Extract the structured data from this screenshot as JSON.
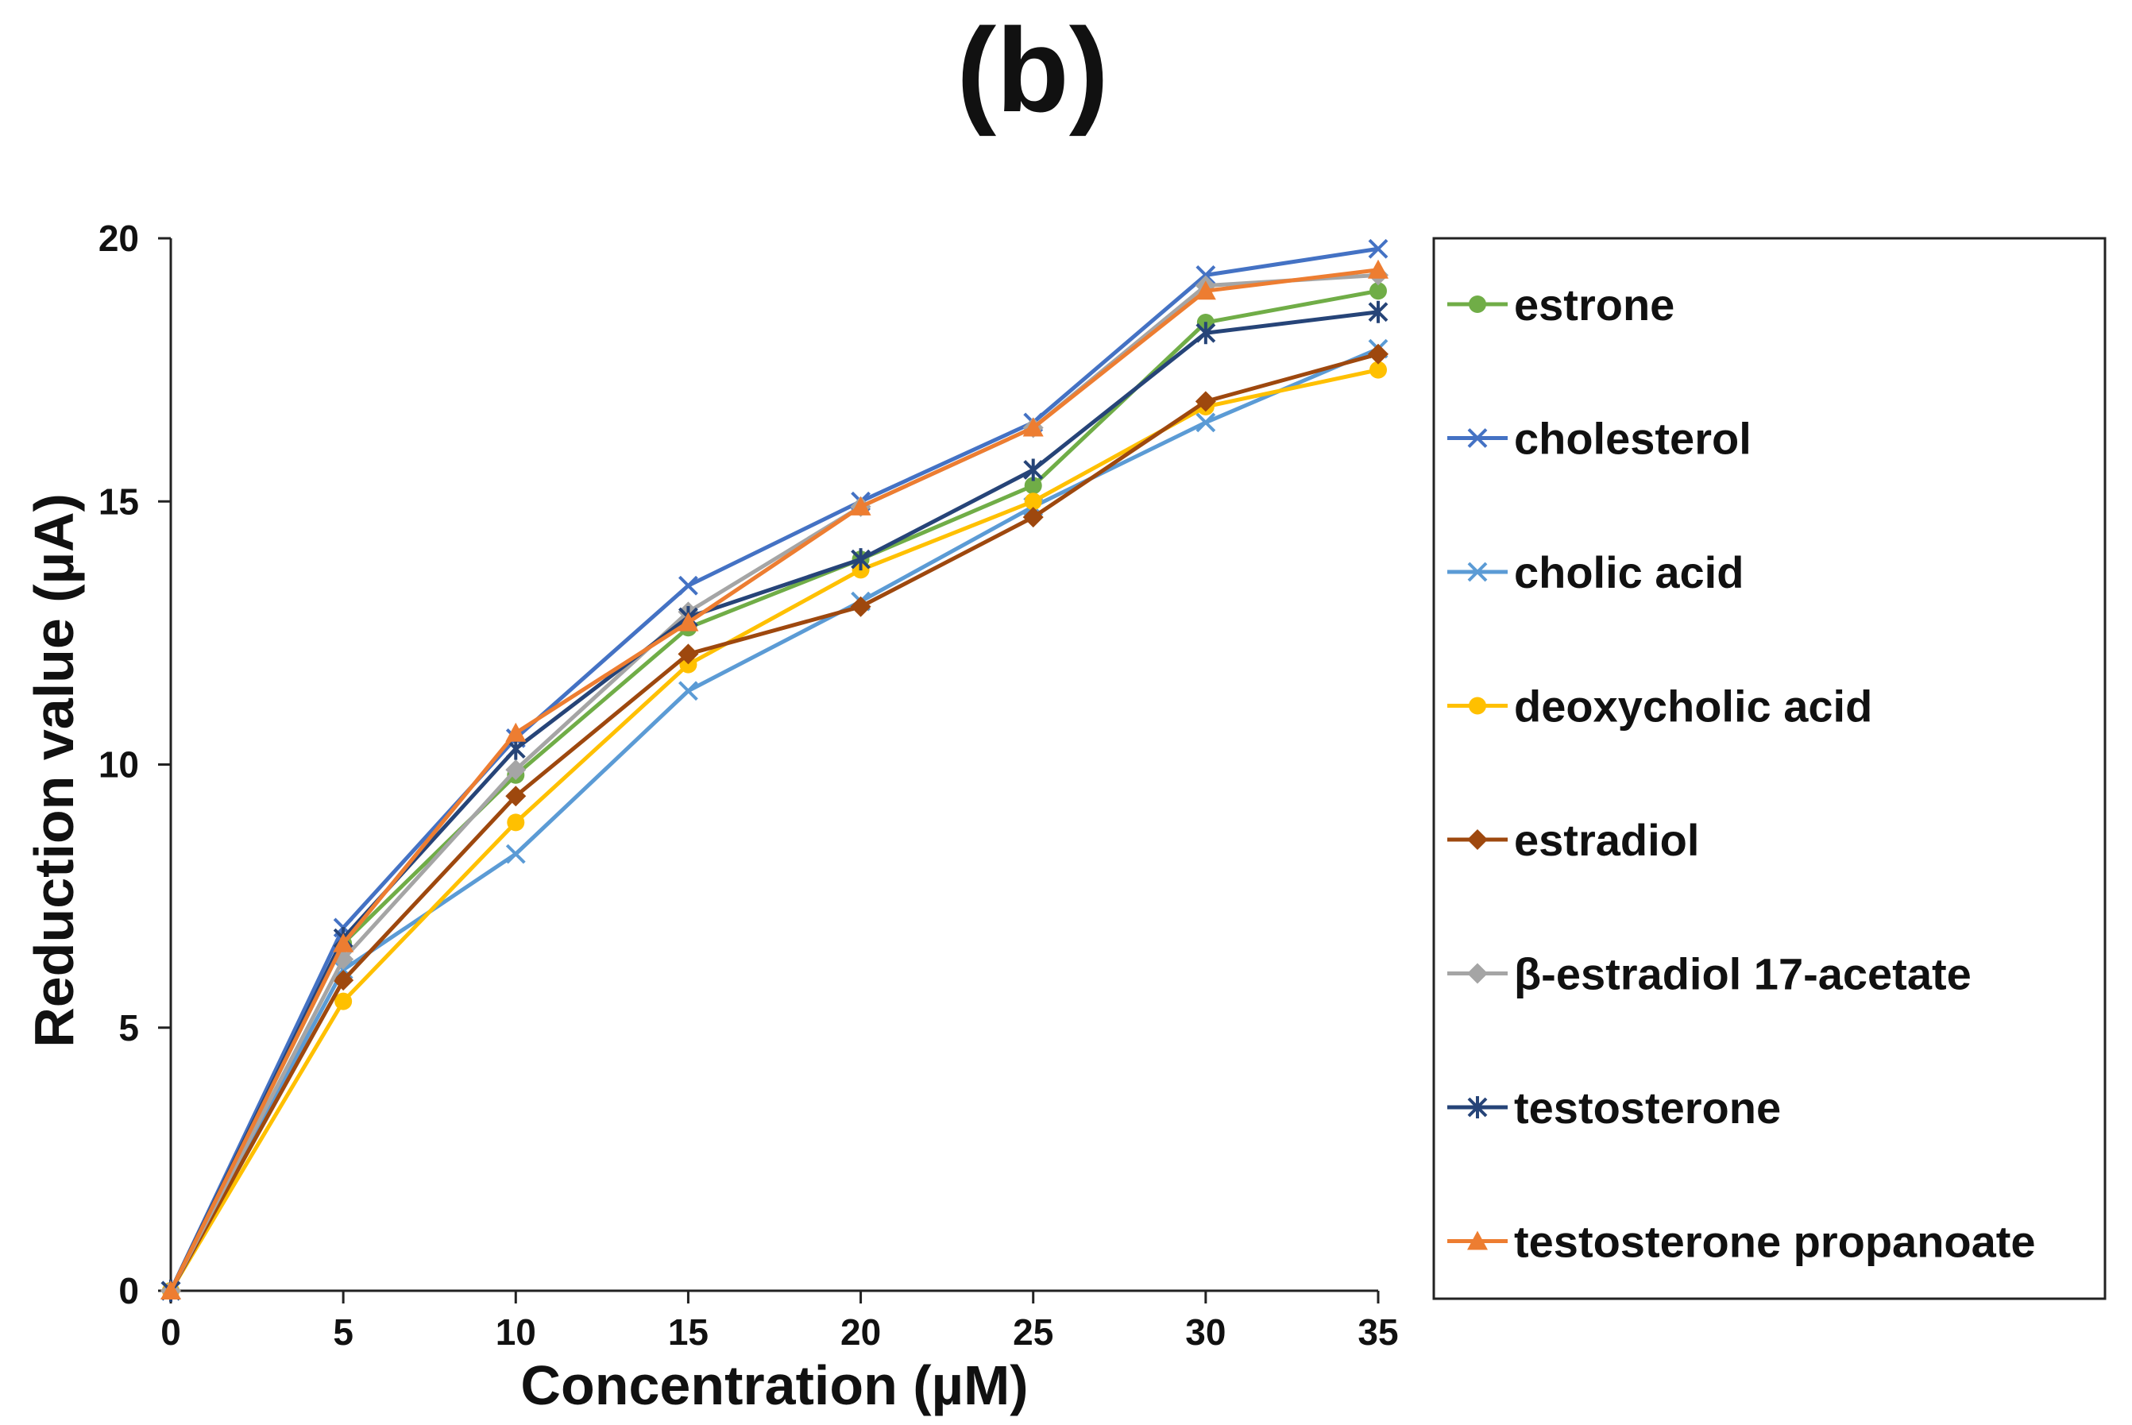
{
  "chart_data": {
    "type": "line",
    "title": "(b)",
    "xlabel": "Concentration (µM)",
    "ylabel": "Reduction value  (µA)",
    "x": [
      0,
      5,
      10,
      15,
      20,
      25,
      30,
      35
    ],
    "xlim": [
      0,
      35
    ],
    "ylim": [
      0,
      20
    ],
    "xticks": [
      0,
      5,
      10,
      15,
      20,
      25,
      30,
      35
    ],
    "yticks": [
      0,
      5,
      10,
      15,
      20
    ],
    "grid": false,
    "legend_position": "right",
    "series": [
      {
        "name": "estrone",
        "color": "#70ad47",
        "marker": "circle",
        "values": [
          0,
          6.6,
          9.8,
          12.6,
          13.9,
          15.3,
          18.4,
          19.0
        ]
      },
      {
        "name": "cholesterol",
        "color": "#4472c4",
        "marker": "x",
        "values": [
          0,
          6.9,
          10.5,
          13.4,
          15.0,
          16.5,
          19.3,
          19.8
        ]
      },
      {
        "name": "cholic acid",
        "color": "#5b9bd5",
        "marker": "x",
        "values": [
          0,
          6.1,
          8.3,
          11.4,
          13.1,
          14.9,
          16.5,
          17.9
        ]
      },
      {
        "name": "deoxycholic acid",
        "color": "#ffc000",
        "marker": "circle",
        "values": [
          0,
          5.5,
          8.9,
          11.9,
          13.7,
          15.0,
          16.8,
          17.5
        ]
      },
      {
        "name": "estradiol",
        "color": "#9e480e",
        "marker": "diamond",
        "values": [
          0,
          5.9,
          9.4,
          12.1,
          13.0,
          14.7,
          16.9,
          17.8
        ]
      },
      {
        "name": "β-estradiol 17-acetate",
        "color": "#a5a5a5",
        "marker": "diamond",
        "values": [
          0,
          6.3,
          9.9,
          12.9,
          14.9,
          16.4,
          19.1,
          19.3
        ]
      },
      {
        "name": "testosterone",
        "color": "#264478",
        "marker": "asterisk",
        "values": [
          0,
          6.7,
          10.3,
          12.8,
          13.9,
          15.6,
          18.2,
          18.6
        ]
      },
      {
        "name": "testosterone propanoate",
        "color": "#ed7d31",
        "marker": "triangle",
        "values": [
          0,
          6.6,
          10.6,
          12.7,
          14.9,
          16.4,
          19.0,
          19.4
        ]
      }
    ]
  }
}
